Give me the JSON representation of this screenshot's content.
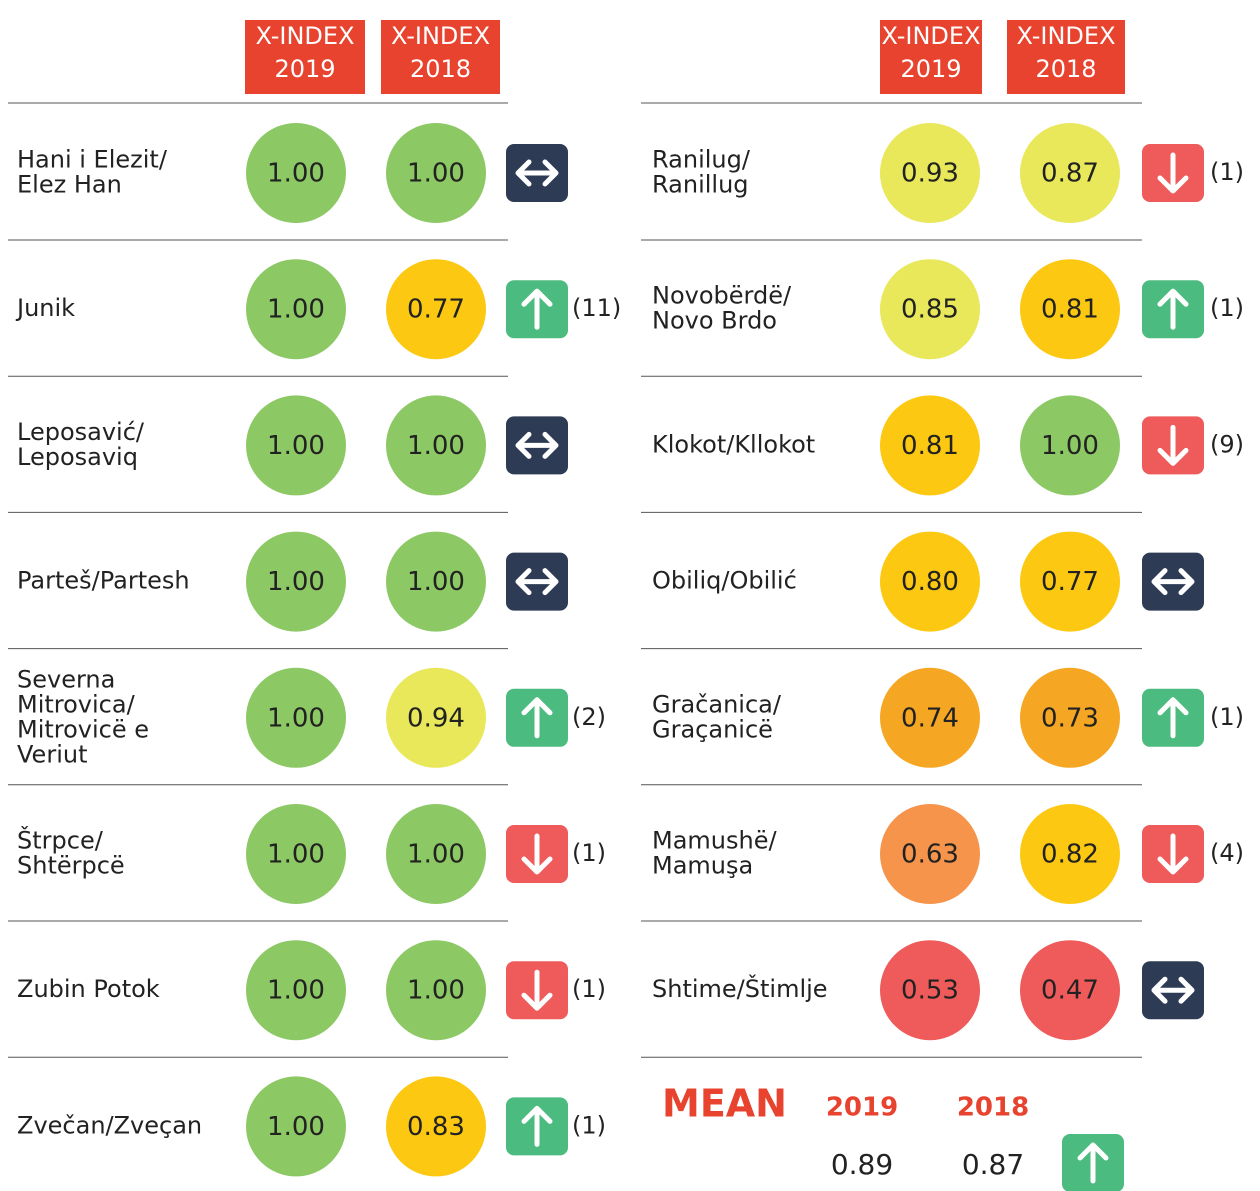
{
  "headers": [
    {
      "line1": "X-INDEX",
      "line2": "2019"
    },
    {
      "line1": "X-INDEX",
      "line2": "2018"
    }
  ],
  "panels": [
    {
      "rows": [
        {
          "name": [
            "Hani i Elezit/",
            "Elez Han"
          ],
          "scores": [
            "1.00",
            "1.00"
          ],
          "colors": [
            "#8cc864",
            "#8cc864"
          ],
          "trend": "same"
        },
        {
          "name": [
            "Junik"
          ],
          "scores": [
            "1.00",
            "0.77"
          ],
          "colors": [
            "#8cc864",
            "#fcc812"
          ],
          "trend": "up",
          "change": "(11)"
        },
        {
          "name": [
            "Leposavić/",
            "Leposaviq"
          ],
          "scores": [
            "1.00",
            "1.00"
          ],
          "colors": [
            "#8cc864",
            "#8cc864"
          ],
          "trend": "same"
        },
        {
          "name": [
            "Parteš/Partesh"
          ],
          "scores": [
            "1.00",
            "1.00"
          ],
          "colors": [
            "#8cc864",
            "#8cc864"
          ],
          "trend": "same"
        },
        {
          "name": [
            "Severna",
            "Mitrovica/",
            "Mitrovicë e",
            "Veriut"
          ],
          "scores": [
            "1.00",
            "0.94"
          ],
          "colors": [
            "#8cc864",
            "#e8e85a"
          ],
          "trend": "up",
          "change": "(2)"
        },
        {
          "name": [
            "Štrpce/",
            "Shtërpcë"
          ],
          "scores": [
            "1.00",
            "1.00"
          ],
          "colors": [
            "#8cc864",
            "#8cc864"
          ],
          "trend": "down",
          "change": "(1)"
        },
        {
          "name": [
            "Zubin Potok"
          ],
          "scores": [
            "1.00",
            "1.00"
          ],
          "colors": [
            "#8cc864",
            "#8cc864"
          ],
          "trend": "down",
          "change": "(1)"
        },
        {
          "name": [
            "Zvečan/Zveçan"
          ],
          "scores": [
            "1.00",
            "0.83"
          ],
          "colors": [
            "#8cc864",
            "#fcc812"
          ],
          "trend": "up",
          "change": "(1)"
        }
      ]
    },
    {
      "rows": [
        {
          "name": [
            "Ranilug/",
            "Ranillug"
          ],
          "scores": [
            "0.93",
            "0.87"
          ],
          "colors": [
            "#e8e85a",
            "#e8e85a"
          ],
          "trend": "down",
          "change": "(1)"
        },
        {
          "name": [
            "Novobërdë/",
            "Novo Brdo"
          ],
          "scores": [
            "0.85",
            "0.81"
          ],
          "colors": [
            "#e8e85a",
            "#fcc812"
          ],
          "trend": "up",
          "change": "(1)"
        },
        {
          "name": [
            "Klokot/Kllokot"
          ],
          "scores": [
            "0.81",
            "1.00"
          ],
          "colors": [
            "#fcc812",
            "#8cc864"
          ],
          "trend": "down",
          "change": "(9)"
        },
        {
          "name": [
            "Obiliq/Obilić"
          ],
          "scores": [
            "0.80",
            "0.77"
          ],
          "colors": [
            "#fcc812",
            "#fcc812"
          ],
          "trend": "same"
        },
        {
          "name": [
            "Gračanica/",
            "Graçanicë"
          ],
          "scores": [
            "0.74",
            "0.73"
          ],
          "colors": [
            "#f5a623",
            "#f5a623"
          ],
          "trend": "up",
          "change": "(1)"
        },
        {
          "name": [
            "Mamushë/",
            "Mamuşa"
          ],
          "scores": [
            "0.63",
            "0.82"
          ],
          "colors": [
            "#f5944a",
            "#fcc812"
          ],
          "trend": "down",
          "change": "(4)"
        },
        {
          "name": [
            "Shtime/Štimlje"
          ],
          "scores": [
            "0.53",
            "0.47"
          ],
          "colors": [
            "#ef5a5a",
            "#ef5a5a"
          ],
          "trend": "same"
        }
      ]
    }
  ],
  "mean": {
    "label": "MEAN",
    "years": [
      "2019",
      "2018"
    ],
    "values": [
      "0.89",
      "0.87"
    ],
    "trend": "up"
  }
}
